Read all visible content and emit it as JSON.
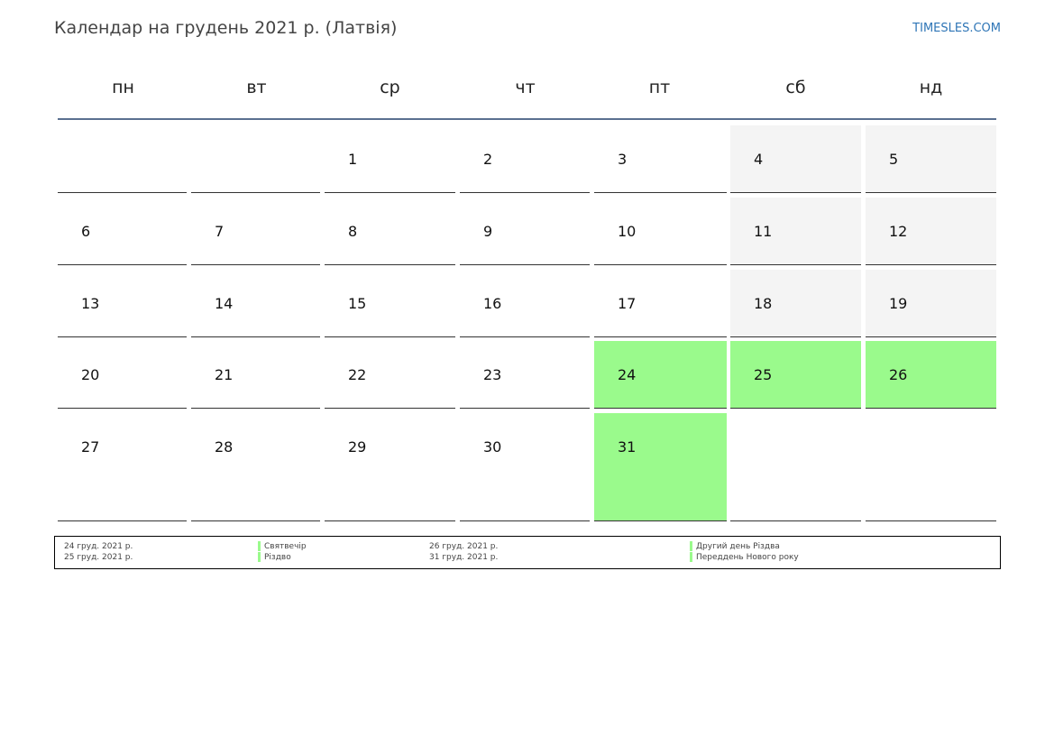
{
  "header": {
    "title": "Календар на грудень 2021 р. (Латвія)",
    "site": "TIMESLES.COM"
  },
  "weekdays": [
    "пн",
    "вт",
    "ср",
    "чт",
    "пт",
    "сб",
    "нд"
  ],
  "weeks": [
    [
      null,
      null,
      {
        "day": 1
      },
      {
        "day": 2
      },
      {
        "day": 3
      },
      {
        "day": 4
      },
      {
        "day": 5
      }
    ],
    [
      {
        "day": 6
      },
      {
        "day": 7
      },
      {
        "day": 8
      },
      {
        "day": 9
      },
      {
        "day": 10
      },
      {
        "day": 11
      },
      {
        "day": 12
      }
    ],
    [
      {
        "day": 13
      },
      {
        "day": 14
      },
      {
        "day": 15
      },
      {
        "day": 16
      },
      {
        "day": 17
      },
      {
        "day": 18
      },
      {
        "day": 19
      }
    ],
    [
      {
        "day": 20
      },
      {
        "day": 21
      },
      {
        "day": 22
      },
      {
        "day": 23
      },
      {
        "day": 24,
        "holiday": true
      },
      {
        "day": 25,
        "holiday": true
      },
      {
        "day": 26,
        "holiday": true
      }
    ],
    [
      {
        "day": 27
      },
      {
        "day": 28
      },
      {
        "day": 29
      },
      {
        "day": 30
      },
      {
        "day": 31,
        "holiday": true
      },
      null,
      null
    ]
  ],
  "holiday_color": "#9afa8c",
  "weekend_color": "#f4f4f4",
  "holidays": [
    {
      "date": "24 груд. 2021 р.",
      "name": "Святвечір"
    },
    {
      "date": "25 груд. 2021 р.",
      "name": "Різдво"
    },
    {
      "date": "26 груд. 2021 р.",
      "name": "Другий день Різдва"
    },
    {
      "date": "31 груд. 2021 р.",
      "name": "Переддень Нового року"
    }
  ]
}
